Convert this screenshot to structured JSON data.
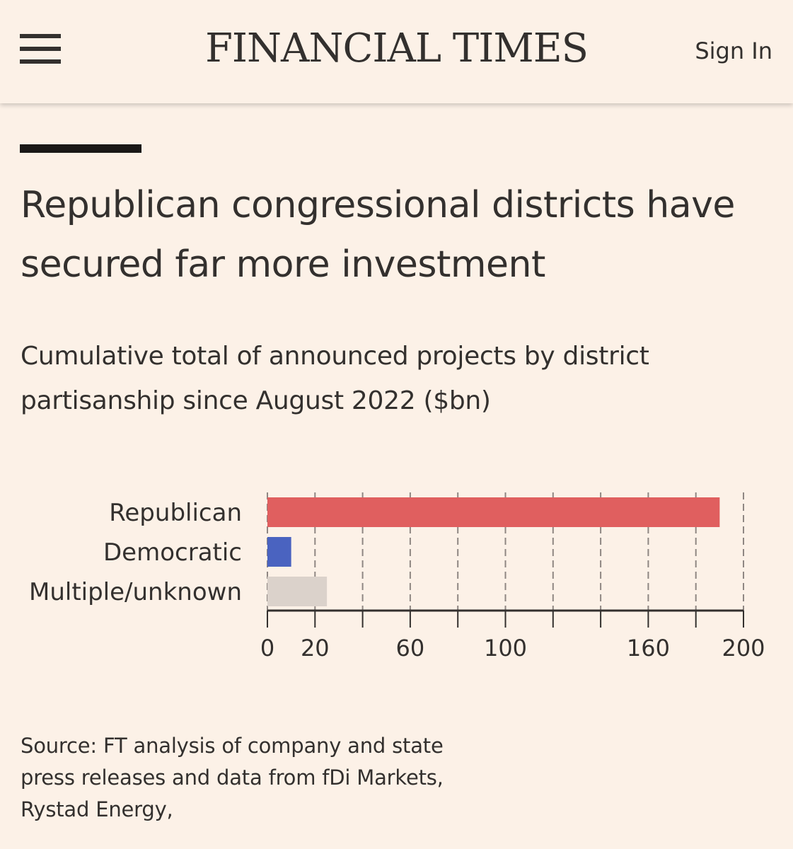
{
  "header": {
    "logo": "FINANCIAL TIMES",
    "sign_in": "Sign In"
  },
  "article": {
    "title": "Republican congressional districts have secured far more investment",
    "subtitle": "Cumulative total of announced projects by district partisanship since August 2022 ($bn)",
    "source": "Source: FT analysis of company and state press releases and data from fDi Markets, Rystad Energy,"
  },
  "chart_data": {
    "type": "bar",
    "orientation": "horizontal",
    "categories": [
      "Republican",
      "Democratic",
      "Multiple/unknown"
    ],
    "values": [
      190,
      10,
      25
    ],
    "colors": [
      "#e05f5f",
      "#4a63c0",
      "#dbd2cb"
    ],
    "xlim": [
      0,
      200
    ],
    "gridlines": [
      0,
      20,
      40,
      60,
      80,
      100,
      120,
      140,
      160,
      180,
      200
    ],
    "tick_labels": [
      {
        "value": 0,
        "label": "0"
      },
      {
        "value": 20,
        "label": "20"
      },
      {
        "value": 60,
        "label": "60"
      },
      {
        "value": 100,
        "label": "100"
      },
      {
        "value": 160,
        "label": "160"
      },
      {
        "value": 200,
        "label": "200"
      }
    ],
    "grid": true
  }
}
